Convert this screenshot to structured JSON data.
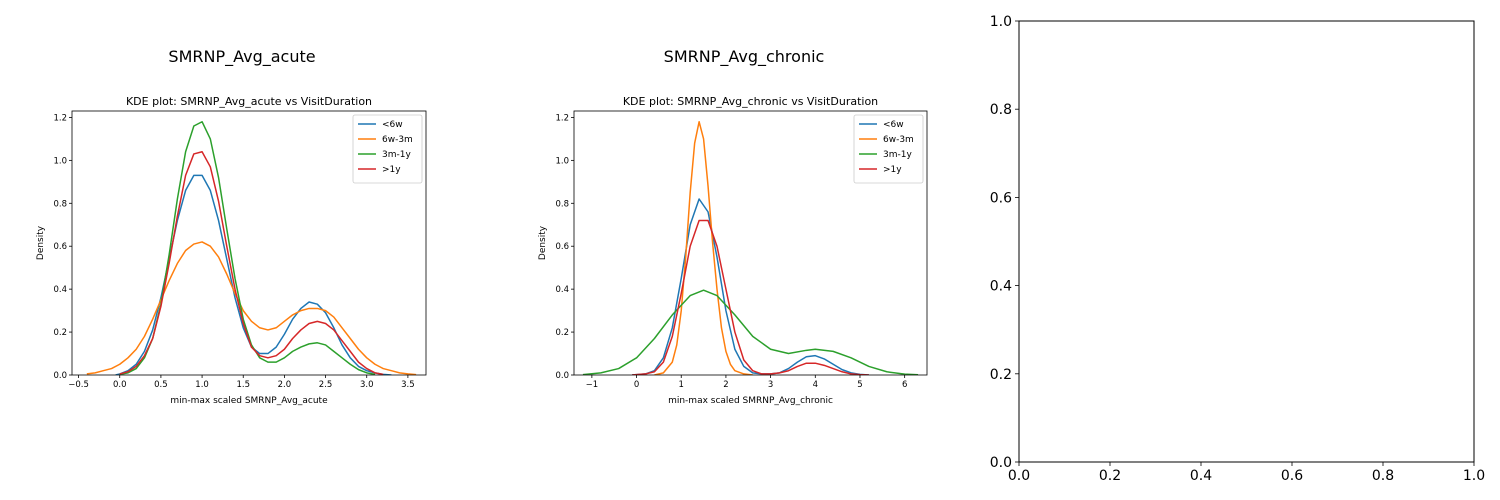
{
  "chart_data": [
    {
      "type": "line",
      "suptitle": "SMRNP_Avg_acute",
      "title": "KDE plot:  SMRNP_Avg_acute vs VisitDuration",
      "xlabel": "min-max scaled SMRNP_Avg_acute",
      "ylabel": "Density",
      "xlim": [
        -0.58,
        3.72
      ],
      "ylim": [
        0,
        1.23
      ],
      "xticks": [
        -0.5,
        0.0,
        0.5,
        1.0,
        1.5,
        2.0,
        2.5,
        3.0,
        3.5
      ],
      "xtick_labels": [
        "−0.5",
        "0.0",
        "0.5",
        "1.0",
        "1.5",
        "2.0",
        "2.5",
        "3.0",
        "3.5"
      ],
      "yticks": [
        0.0,
        0.2,
        0.4,
        0.6,
        0.8,
        1.0,
        1.2
      ],
      "ytick_labels": [
        "0.0",
        "0.2",
        "0.4",
        "0.6",
        "0.8",
        "1.0",
        "1.2"
      ],
      "legend_position": "upper right",
      "series": [
        {
          "name": "<6w",
          "color": "#1f77b4",
          "x": [
            -0.05,
            0.0,
            0.1,
            0.2,
            0.3,
            0.4,
            0.5,
            0.6,
            0.7,
            0.8,
            0.9,
            1.0,
            1.1,
            1.2,
            1.3,
            1.4,
            1.5,
            1.6,
            1.7,
            1.8,
            1.9,
            2.0,
            2.1,
            2.2,
            2.3,
            2.4,
            2.5,
            2.6,
            2.7,
            2.8,
            2.9,
            3.0,
            3.1,
            3.2,
            3.3
          ],
          "y": [
            0.0,
            0.005,
            0.02,
            0.05,
            0.11,
            0.21,
            0.36,
            0.54,
            0.72,
            0.86,
            0.93,
            0.93,
            0.86,
            0.72,
            0.54,
            0.36,
            0.22,
            0.13,
            0.1,
            0.1,
            0.13,
            0.19,
            0.26,
            0.31,
            0.34,
            0.33,
            0.29,
            0.22,
            0.14,
            0.08,
            0.04,
            0.02,
            0.01,
            0.003,
            0.0
          ]
        },
        {
          "name": "6w-3m",
          "color": "#ff7f0e",
          "x": [
            -0.4,
            -0.3,
            -0.2,
            -0.1,
            0.0,
            0.1,
            0.2,
            0.3,
            0.4,
            0.5,
            0.6,
            0.7,
            0.8,
            0.9,
            1.0,
            1.1,
            1.2,
            1.3,
            1.4,
            1.5,
            1.6,
            1.7,
            1.8,
            1.9,
            2.0,
            2.1,
            2.2,
            2.3,
            2.4,
            2.5,
            2.6,
            2.7,
            2.8,
            2.9,
            3.0,
            3.1,
            3.2,
            3.3,
            3.4,
            3.5,
            3.6
          ],
          "y": [
            0.005,
            0.01,
            0.02,
            0.03,
            0.05,
            0.08,
            0.12,
            0.18,
            0.26,
            0.35,
            0.44,
            0.52,
            0.58,
            0.61,
            0.62,
            0.6,
            0.55,
            0.47,
            0.38,
            0.3,
            0.25,
            0.22,
            0.21,
            0.22,
            0.25,
            0.28,
            0.3,
            0.31,
            0.31,
            0.3,
            0.27,
            0.22,
            0.17,
            0.12,
            0.08,
            0.05,
            0.03,
            0.02,
            0.01,
            0.005,
            0.002
          ]
        },
        {
          "name": "3m-1y",
          "color": "#2ca02c",
          "x": [
            0.0,
            0.1,
            0.2,
            0.3,
            0.4,
            0.5,
            0.6,
            0.7,
            0.8,
            0.9,
            1.0,
            1.1,
            1.2,
            1.3,
            1.4,
            1.5,
            1.6,
            1.7,
            1.8,
            1.9,
            2.0,
            2.1,
            2.2,
            2.3,
            2.4,
            2.5,
            2.6,
            2.7,
            2.8,
            2.9,
            3.0,
            3.1
          ],
          "y": [
            0.003,
            0.01,
            0.03,
            0.08,
            0.17,
            0.33,
            0.56,
            0.82,
            1.04,
            1.16,
            1.18,
            1.1,
            0.92,
            0.68,
            0.45,
            0.26,
            0.14,
            0.08,
            0.06,
            0.06,
            0.08,
            0.11,
            0.13,
            0.145,
            0.15,
            0.14,
            0.11,
            0.08,
            0.05,
            0.025,
            0.01,
            0.003
          ]
        },
        {
          "name": ">1y",
          "color": "#d62728",
          "x": [
            0.0,
            0.1,
            0.2,
            0.3,
            0.4,
            0.5,
            0.6,
            0.7,
            0.8,
            0.9,
            1.0,
            1.1,
            1.2,
            1.3,
            1.4,
            1.5,
            1.6,
            1.7,
            1.8,
            1.9,
            2.0,
            2.1,
            2.2,
            2.3,
            2.4,
            2.5,
            2.6,
            2.7,
            2.8,
            2.9,
            3.0,
            3.1,
            3.2
          ],
          "y": [
            0.005,
            0.015,
            0.04,
            0.09,
            0.17,
            0.32,
            0.52,
            0.74,
            0.93,
            1.03,
            1.04,
            0.97,
            0.81,
            0.6,
            0.4,
            0.24,
            0.13,
            0.09,
            0.08,
            0.09,
            0.12,
            0.17,
            0.21,
            0.24,
            0.25,
            0.24,
            0.21,
            0.16,
            0.11,
            0.06,
            0.03,
            0.01,
            0.003
          ]
        }
      ]
    },
    {
      "type": "line",
      "suptitle": "SMRNP_Avg_chronic",
      "title": "KDE plot:  SMRNP_Avg_chronic vs VisitDuration",
      "xlabel": "min-max scaled SMRNP_Avg_chronic",
      "ylabel": "Density",
      "xlim": [
        -1.4,
        6.5
      ],
      "ylim": [
        0,
        1.23
      ],
      "xticks": [
        -1,
        0,
        1,
        2,
        3,
        4,
        5,
        6
      ],
      "xtick_labels": [
        "−1",
        "0",
        "1",
        "2",
        "3",
        "4",
        "5",
        "6"
      ],
      "yticks": [
        0.0,
        0.2,
        0.4,
        0.6,
        0.8,
        1.0,
        1.2
      ],
      "ytick_labels": [
        "0.0",
        "0.2",
        "0.4",
        "0.6",
        "0.8",
        "1.0",
        "1.2"
      ],
      "legend_position": "upper right",
      "series": [
        {
          "name": "<6w",
          "color": "#1f77b4",
          "x": [
            -0.1,
            0.2,
            0.4,
            0.6,
            0.8,
            1.0,
            1.2,
            1.4,
            1.6,
            1.8,
            2.0,
            2.2,
            2.4,
            2.6,
            2.8,
            3.0,
            3.2,
            3.4,
            3.6,
            3.8,
            4.0,
            4.2,
            4.4,
            4.6,
            4.8,
            5.0,
            5.2
          ],
          "y": [
            0.0,
            0.005,
            0.02,
            0.08,
            0.22,
            0.45,
            0.7,
            0.82,
            0.76,
            0.55,
            0.3,
            0.12,
            0.04,
            0.01,
            0.005,
            0.005,
            0.01,
            0.03,
            0.06,
            0.085,
            0.09,
            0.075,
            0.05,
            0.025,
            0.01,
            0.003,
            0.0
          ]
        },
        {
          "name": "6w-3m",
          "color": "#ff7f0e",
          "x": [
            0.4,
            0.6,
            0.8,
            0.9,
            1.0,
            1.1,
            1.2,
            1.3,
            1.4,
            1.5,
            1.6,
            1.7,
            1.8,
            1.9,
            2.0,
            2.1,
            2.2,
            2.4,
            2.6
          ],
          "y": [
            0.0,
            0.01,
            0.06,
            0.14,
            0.3,
            0.55,
            0.85,
            1.08,
            1.18,
            1.1,
            0.88,
            0.62,
            0.4,
            0.22,
            0.11,
            0.05,
            0.02,
            0.005,
            0.0
          ]
        },
        {
          "name": "3m-1y",
          "color": "#2ca02c",
          "x": [
            -1.2,
            -0.8,
            -0.4,
            0.0,
            0.4,
            0.8,
            1.2,
            1.5,
            1.8,
            2.2,
            2.6,
            3.0,
            3.4,
            3.8,
            4.0,
            4.4,
            4.8,
            5.2,
            5.6,
            6.0,
            6.3
          ],
          "y": [
            0.002,
            0.01,
            0.03,
            0.08,
            0.17,
            0.28,
            0.37,
            0.395,
            0.37,
            0.28,
            0.18,
            0.12,
            0.1,
            0.115,
            0.12,
            0.11,
            0.08,
            0.04,
            0.015,
            0.004,
            0.001
          ]
        },
        {
          "name": ">1y",
          "color": "#d62728",
          "x": [
            -0.1,
            0.2,
            0.4,
            0.6,
            0.8,
            1.0,
            1.2,
            1.4,
            1.6,
            1.8,
            2.0,
            2.2,
            2.4,
            2.6,
            2.8,
            3.0,
            3.2,
            3.4,
            3.6,
            3.8,
            4.0,
            4.2,
            4.4,
            4.6,
            4.8,
            5.0,
            5.2
          ],
          "y": [
            0.0,
            0.005,
            0.015,
            0.06,
            0.18,
            0.38,
            0.6,
            0.72,
            0.72,
            0.6,
            0.4,
            0.2,
            0.07,
            0.02,
            0.005,
            0.005,
            0.01,
            0.02,
            0.04,
            0.055,
            0.055,
            0.045,
            0.03,
            0.015,
            0.005,
            0.002,
            0.0
          ]
        }
      ]
    },
    {
      "type": "line",
      "title": "",
      "xlim": [
        0.0,
        1.0
      ],
      "ylim": [
        0.0,
        1.0
      ],
      "xticks": [
        0.0,
        0.2,
        0.4,
        0.6,
        0.8,
        1.0
      ],
      "xtick_labels": [
        "0.0",
        "0.2",
        "0.4",
        "0.6",
        "0.8",
        "1.0"
      ],
      "yticks": [
        0.0,
        0.2,
        0.4,
        0.6,
        0.8,
        1.0
      ],
      "ytick_labels": [
        "0.0",
        "0.2",
        "0.4",
        "0.6",
        "0.8",
        "1.0"
      ],
      "series": []
    }
  ]
}
